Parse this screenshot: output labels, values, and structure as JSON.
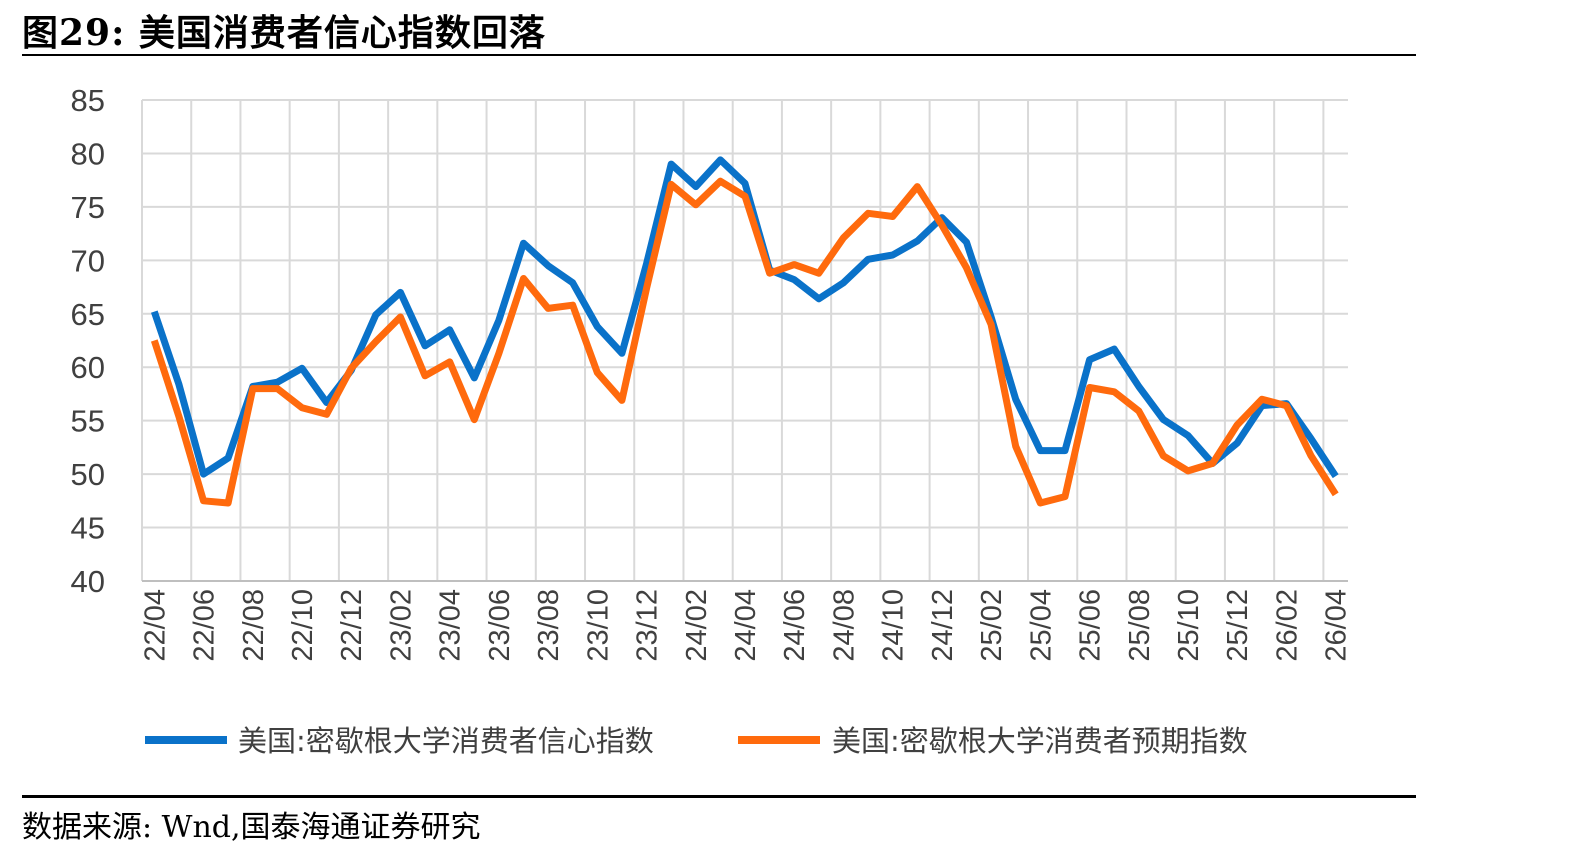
{
  "header": {
    "title": "图29:  美国消费者信心指数回落"
  },
  "footer": {
    "source": "数据来源:  Wnd,国泰海通证券研究"
  },
  "colors": {
    "series1": "#0a72c9",
    "series2": "#ff6a0d",
    "grid": "#d9d9d9",
    "axis": "#bfbfbf"
  },
  "chart_data": {
    "type": "line",
    "title": "",
    "xlabel": "",
    "ylabel": "",
    "ylim": [
      40,
      85
    ],
    "yticks": [
      "40",
      "45",
      "50",
      "55",
      "60",
      "65",
      "70",
      "75",
      "80",
      "85"
    ],
    "grid": true,
    "legend_position": "bottom",
    "x": [
      "22/04",
      "22/05",
      "22/06",
      "22/07",
      "22/08",
      "22/09",
      "22/10",
      "22/11",
      "22/12",
      "23/01",
      "23/02",
      "23/03",
      "23/04",
      "23/05",
      "23/06",
      "23/07",
      "23/08",
      "23/09",
      "23/10",
      "23/11",
      "23/12",
      "24/01",
      "24/02",
      "24/03",
      "24/04",
      "24/05",
      "24/06",
      "24/07",
      "24/08",
      "24/09",
      "24/10",
      "24/11",
      "24/12",
      "25/01",
      "25/02",
      "25/03",
      "25/04",
      "25/05",
      "25/06",
      "25/07",
      "25/08",
      "25/09",
      "25/10",
      "25/11",
      "25/12",
      "26/01",
      "26/02",
      "26/03",
      "26/04"
    ],
    "xtick_labels": [
      "22/04",
      "22/06",
      "22/08",
      "22/10",
      "22/12",
      "23/02",
      "23/04",
      "23/06",
      "23/08",
      "23/10",
      "23/12",
      "24/02",
      "24/04",
      "24/06",
      "24/08",
      "24/10",
      "24/12",
      "25/02",
      "25/04",
      "25/06",
      "25/08",
      "25/10",
      "25/12",
      "26/02",
      "26/04"
    ],
    "series": [
      {
        "name": "美国:密歇根大学消费者信心指数",
        "values": [
          65.2,
          58.4,
          50.0,
          51.5,
          58.2,
          58.6,
          59.9,
          56.7,
          59.7,
          64.9,
          67.0,
          62.0,
          63.5,
          59.0,
          64.4,
          71.6,
          69.5,
          67.9,
          63.8,
          61.3,
          69.7,
          79.0,
          76.9,
          79.4,
          77.2,
          69.1,
          68.2,
          66.4,
          67.9,
          70.1,
          70.5,
          71.8,
          74.0,
          71.7,
          64.7,
          57.0,
          52.2,
          52.2,
          60.7,
          61.7,
          58.2,
          55.1,
          53.6,
          51.0,
          52.9,
          56.4,
          56.6,
          53.3,
          49.8
        ]
      },
      {
        "name": "美国:密歇根大学消费者预期指数",
        "values": [
          62.5,
          55.4,
          47.5,
          47.3,
          58.0,
          58.0,
          56.2,
          55.6,
          59.9,
          62.4,
          64.7,
          59.2,
          60.5,
          55.1,
          61.3,
          68.3,
          65.5,
          65.8,
          59.5,
          56.9,
          67.4,
          77.1,
          75.2,
          77.4,
          76.0,
          68.8,
          69.6,
          68.8,
          72.1,
          74.4,
          74.1,
          76.9,
          73.3,
          69.3,
          64.0,
          52.6,
          47.3,
          47.9,
          58.1,
          57.7,
          55.9,
          51.7,
          50.3,
          51.0,
          54.6,
          57.0,
          56.4,
          51.7,
          48.1
        ]
      }
    ]
  }
}
